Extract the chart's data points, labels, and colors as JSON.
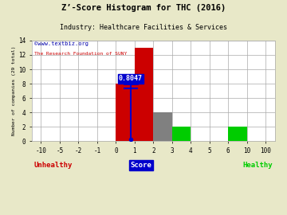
{
  "title": "Z’-Score Histogram for THC (2016)",
  "subtitle": "Industry: Healthcare Facilities & Services",
  "watermark1": "©www.textbiz.org",
  "watermark2": "The Research Foundation of SUNY",
  "xlabel_center": "Score",
  "ylabel": "Number of companies (29 total)",
  "xlabel_left": "Unhealthy",
  "xlabel_right": "Healthy",
  "xtick_labels": [
    "-10",
    "-5",
    "-2",
    "-1",
    "0",
    "1",
    "2",
    "3",
    "4",
    "5",
    "6",
    "10",
    "100"
  ],
  "xtick_values": [
    -10,
    -5,
    -2,
    -1,
    0,
    1,
    2,
    3,
    4,
    5,
    6,
    10,
    100
  ],
  "bars": [
    {
      "x_left": 0,
      "x_right": 1,
      "height": 8,
      "color": "#cc0000"
    },
    {
      "x_left": 1,
      "x_right": 2,
      "height": 13,
      "color": "#cc0000"
    },
    {
      "x_left": 2,
      "x_right": 3,
      "height": 4,
      "color": "#808080"
    },
    {
      "x_left": 3,
      "x_right": 4,
      "height": 2,
      "color": "#00cc00"
    },
    {
      "x_left": 6,
      "x_right": 10,
      "height": 2,
      "color": "#00cc00"
    }
  ],
  "score_value": 0.8047,
  "score_label": "0.8047",
  "score_line_color": "#0000cc",
  "ylim": [
    0,
    14
  ],
  "ytick_positions": [
    0,
    2,
    4,
    6,
    8,
    10,
    12,
    14
  ],
  "background_color": "#e8e8c8",
  "plot_bg_color": "#ffffff",
  "grid_color": "#aaaaaa",
  "title_color": "#000000",
  "subtitle_color": "#000000",
  "watermark1_color": "#0000aa",
  "watermark2_color": "#cc0000",
  "unhealthy_color": "#cc0000",
  "healthy_color": "#00cc00",
  "score_label_bg": "#0000cc",
  "score_label_fg": "#ffffff"
}
